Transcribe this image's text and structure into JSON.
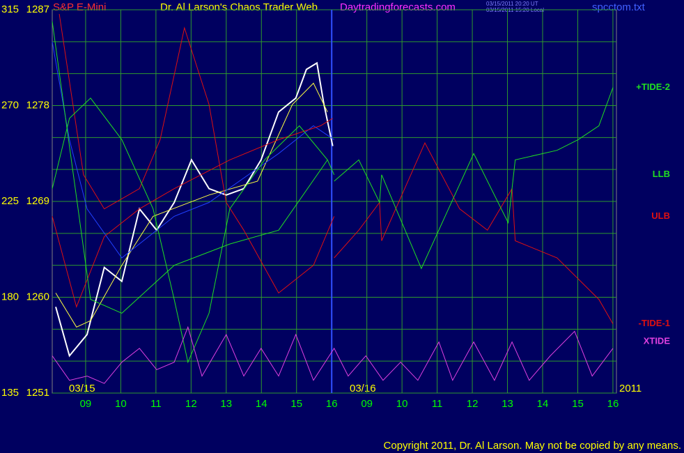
{
  "chart_data": {
    "type": "line",
    "title": "Dr. Al Larson's Chaos Trader Web",
    "instrument": "S&P E-Mini",
    "site": "Daytradingforecasts.com",
    "timestamps": [
      "03/15/2011 20:20 UT",
      "03/15/2011 15:20 Local"
    ],
    "file": "spcctom.txt",
    "date_labels": [
      "03/15",
      "03/16",
      "2011"
    ],
    "copyright": "Copyright 2011, Dr. Al Larson. May not be copied by any means.",
    "xlim": [
      0.05,
      16.1
    ],
    "xticks": [
      {
        "value": 1,
        "label": "09"
      },
      {
        "value": 2,
        "label": "10"
      },
      {
        "value": 3,
        "label": "11"
      },
      {
        "value": 4,
        "label": "12"
      },
      {
        "value": 5,
        "label": "13"
      },
      {
        "value": 6,
        "label": "14"
      },
      {
        "value": 7,
        "label": "15"
      },
      {
        "value": 8,
        "label": "16"
      },
      {
        "value": 9,
        "label": "09"
      },
      {
        "value": 10,
        "label": "10"
      },
      {
        "value": 11,
        "label": "11"
      },
      {
        "value": 12,
        "label": "12"
      },
      {
        "value": 13,
        "label": "13"
      },
      {
        "value": 14,
        "label": "14"
      },
      {
        "value": 15,
        "label": "15"
      },
      {
        "value": 16,
        "label": "16"
      }
    ],
    "ylim": [
      1251,
      1287
    ],
    "yticks": [
      1251,
      1260,
      1269,
      1278,
      1287
    ],
    "minor_yticks": [
      1254,
      1257,
      1263,
      1266,
      1272,
      1275,
      1281,
      1284
    ],
    "y2lim": [
      135,
      315
    ],
    "y2ticks": [
      135,
      180,
      225,
      270,
      315
    ],
    "grid": true,
    "series": [
      {
        "color": "#ffffff",
        "x": [
          0.15,
          0.54,
          1.04,
          1.53,
          2.03,
          2.53,
          3.02,
          3.52,
          4.01,
          4.51,
          5.0,
          5.5,
          5.99,
          6.49,
          6.98,
          7.28,
          7.58,
          7.78,
          8.03
        ],
        "values": [
          1259.1,
          1254.5,
          1256.5,
          1262.8,
          1261.5,
          1268.3,
          1266.3,
          1268.9,
          1272.9,
          1270.2,
          1269.6,
          1270.2,
          1272.9,
          1277.4,
          1278.7,
          1281.4,
          1282.0,
          1278.1,
          1274.2
        ]
      },
      {
        "color": "#ffff40",
        "x": [
          0.15,
          0.74,
          1.14,
          2.03,
          2.92,
          4.51,
          5.89,
          6.88,
          7.48,
          7.88
        ],
        "values": [
          1260.4,
          1257.2,
          1257.8,
          1263.0,
          1267.6,
          1269.6,
          1270.9,
          1278.1,
          1280.1,
          1277.4
        ]
      },
      {
        "color": "#2040ff",
        "x": [
          0.05,
          0.54,
          1.04,
          2.03,
          3.52,
          4.51,
          6.49,
          7.48,
          8.07
        ],
        "values": [
          1284.0,
          1274.8,
          1268.3,
          1263.7,
          1267.6,
          1268.9,
          1273.5,
          1276.1,
          1274.8
        ]
      },
      {
        "name": "ULB",
        "color": "#e01010",
        "x": [
          0.25,
          0.94,
          1.53,
          2.53,
          3.12,
          3.81,
          4.51,
          5.0,
          5.5,
          6.49,
          7.48,
          8.07
        ],
        "values": [
          1286.6,
          1271.5,
          1268.3,
          1270.2,
          1274.8,
          1285.3,
          1278.1,
          1268.9,
          1266.3,
          1260.4,
          1263.0,
          1267.6
        ]
      },
      {
        "color": "#e01010",
        "x": [
          0.05,
          0.74,
          1.53,
          2.53,
          3.52,
          5.1,
          6.49,
          7.68,
          8.03
        ],
        "values": [
          1267.6,
          1259.1,
          1265.7,
          1268.3,
          1270.2,
          1272.9,
          1274.8,
          1276.1,
          1276.8
        ]
      },
      {
        "name": "-TIDE-1",
        "color": "#e01010",
        "x": [
          8.07,
          8.77,
          9.36,
          9.42,
          10.65,
          11.64,
          12.43,
          13.13,
          13.22,
          14.41,
          15.6,
          16.0
        ],
        "values": [
          1263.7,
          1266.3,
          1268.9,
          1265.3,
          1274.5,
          1268.3,
          1266.3,
          1270.2,
          1265.3,
          1263.7,
          1259.8,
          1257.5
        ]
      },
      {
        "name": "LLB",
        "color": "#20e020",
        "x": [
          0.05,
          0.54,
          1.14,
          2.03,
          2.92,
          3.52,
          3.91,
          4.51,
          5.1,
          6.09,
          7.08,
          7.88,
          8.07
        ],
        "values": [
          1270.2,
          1276.8,
          1278.7,
          1274.8,
          1268.3,
          1259.8,
          1253.9,
          1258.5,
          1268.3,
          1272.9,
          1276.1,
          1272.9,
          1271.5
        ]
      },
      {
        "color": "#20e020",
        "x": [
          0.05,
          1.14,
          2.03,
          3.52,
          5.1,
          6.49,
          7.88
        ],
        "values": [
          1285.9,
          1259.8,
          1258.5,
          1263.0,
          1265.0,
          1266.3,
          1272.9
        ]
      },
      {
        "name": "+TIDE-2",
        "color": "#20e020",
        "x": [
          8.07,
          8.77,
          9.36,
          9.42,
          10.55,
          12.04,
          13.02,
          13.22,
          14.41,
          15.01,
          15.6,
          16.0
        ],
        "values": [
          1270.9,
          1272.9,
          1268.9,
          1271.5,
          1262.7,
          1273.5,
          1267.0,
          1272.9,
          1273.8,
          1274.8,
          1276.1,
          1279.7
        ]
      },
      {
        "name": "XTIDE",
        "color": "#e040e0",
        "x": [
          0.05,
          0.54,
          1.04,
          1.53,
          2.03,
          2.53,
          3.02,
          3.52,
          3.91,
          4.31,
          5.0,
          5.5,
          5.99,
          6.49,
          6.98,
          7.48,
          8.07,
          8.47,
          8.97,
          9.46,
          9.96,
          10.45,
          11.05,
          11.44,
          12.04,
          12.63,
          13.13,
          13.62,
          14.22,
          14.91,
          15.41,
          16.0
        ],
        "values": [
          1254.5,
          1252.2,
          1252.6,
          1251.9,
          1253.9,
          1255.2,
          1253.2,
          1253.9,
          1257.2,
          1252.6,
          1256.5,
          1252.6,
          1255.2,
          1252.6,
          1256.5,
          1252.2,
          1255.2,
          1252.6,
          1254.5,
          1252.2,
          1253.9,
          1252.2,
          1255.8,
          1252.2,
          1255.8,
          1252.2,
          1255.8,
          1252.2,
          1254.5,
          1256.8,
          1252.6,
          1255.2
        ]
      }
    ]
  }
}
